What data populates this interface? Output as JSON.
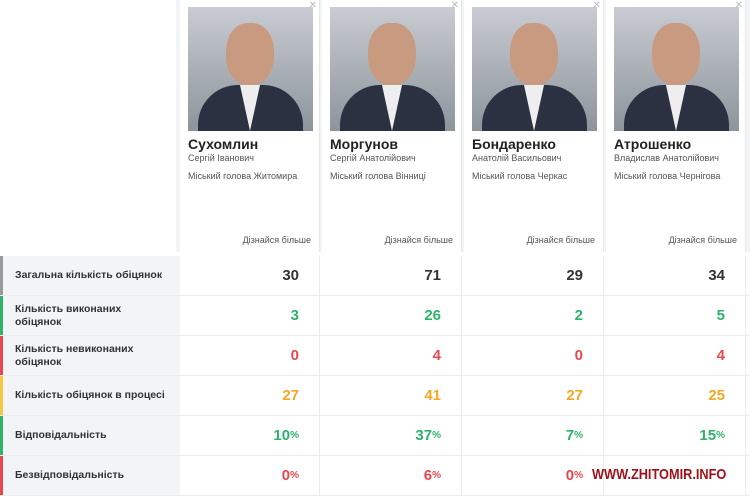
{
  "candidates": [
    {
      "surname": "Сухомлин",
      "given": "Сергій Іванович",
      "role": "Міський голова Житомира",
      "more": "Дізнайся більше"
    },
    {
      "surname": "Моргунов",
      "given": "Сергій Анатолійович",
      "role": "Міський голова Вінниці",
      "more": "Дізнайся більше"
    },
    {
      "surname": "Бондаренко",
      "given": "Анатолій Васильович",
      "role": "Міський голова Черкас",
      "more": "Дізнайся більше"
    },
    {
      "surname": "Атрошенко",
      "given": "Владислав Анатолійович",
      "role": "Міський голова Чернігова",
      "more": "Дізнайся більше"
    }
  ],
  "rows": [
    {
      "label": "Загальна кількість обіцянок",
      "color": "#333333",
      "border": "#9a9a9a",
      "unit": "",
      "values": [
        "30",
        "71",
        "29",
        "34"
      ]
    },
    {
      "label": "Кількість виконаних обіцянок",
      "color": "#2db36a",
      "border": "#2db36a",
      "unit": "",
      "values": [
        "3",
        "26",
        "2",
        "5"
      ]
    },
    {
      "label": "Кількість невиконаних обіцянок",
      "color": "#e8474f",
      "border": "#e8474f",
      "unit": "",
      "values": [
        "0",
        "4",
        "0",
        "4"
      ]
    },
    {
      "label": "Кількість обіцянок в процесі",
      "color": "#f5a623",
      "border": "#f5c842",
      "unit": "",
      "values": [
        "27",
        "41",
        "27",
        "25"
      ]
    },
    {
      "label": "Відповідальність",
      "color": "#2db36a",
      "border": "#2db36a",
      "unit": "%",
      "values": [
        "10",
        "37",
        "7",
        "15"
      ]
    },
    {
      "label": "Безвідповідальність",
      "color": "#e8474f",
      "border": "#e8474f",
      "unit": "%",
      "values": [
        "0",
        "6",
        "0",
        ""
      ]
    }
  ],
  "watermark": "WWW.ZHITOMIR.INFO"
}
